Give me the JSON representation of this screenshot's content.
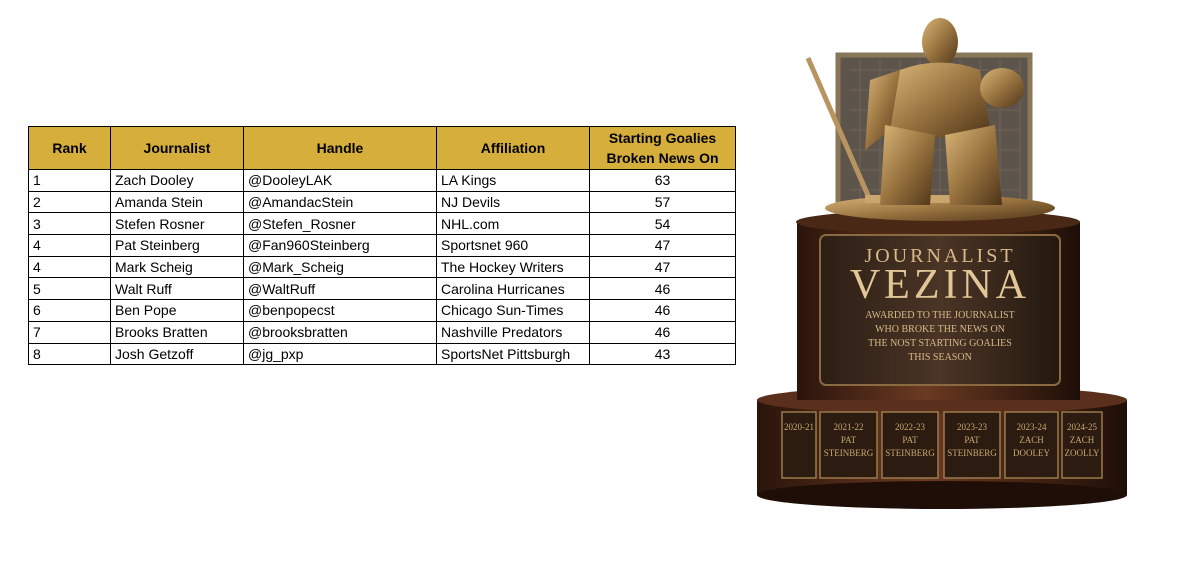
{
  "table": {
    "headers": [
      "Rank",
      "Journalist",
      "Handle",
      "Affiliation",
      "Starting Goalies Broken News On"
    ],
    "rows": [
      [
        1,
        "Zach Dooley",
        "@DooleyLAK",
        "LA Kings",
        63
      ],
      [
        2,
        "Amanda Stein",
        "@AmandacStein",
        "NJ Devils",
        57
      ],
      [
        3,
        "Stefen Rosner",
        "@Stefen_Rosner",
        "NHL.com",
        54
      ],
      [
        4,
        "Pat Steinberg",
        "@Fan960Steinberg",
        "Sportsnet 960",
        47
      ],
      [
        4,
        "Mark Scheig",
        "@Mark_Scheig",
        "The Hockey Writers",
        47
      ],
      [
        5,
        "Walt Ruff",
        "@WaltRuff",
        "Carolina Hurricanes",
        46
      ],
      [
        6,
        "Ben Pope",
        "@benpopecst",
        "Chicago Sun-Times",
        46
      ],
      [
        7,
        "Brooks Bratten",
        "@brooksbratten",
        "Nashville Predators",
        46
      ],
      [
        8,
        "Josh Getzoff",
        "@jg_pxp",
        "SportsNet Pittsburgh",
        43
      ]
    ]
  },
  "trophy": {
    "title": "JOURNALIST",
    "name": "VEZINA",
    "inscription": [
      "AWARDED TO THE JOURNALIST",
      "WHO BROKE THE NEWS ON",
      "THE NOST STARTING GOALIES",
      "THIS SEASON"
    ],
    "plaques": [
      [
        "2020-21"
      ],
      [
        "2021-22",
        "PAT",
        "STEINBERG"
      ],
      [
        "2022-23",
        "PAT",
        "STEINBERG"
      ],
      [
        "2023-23",
        "PAT",
        "STEINBERG"
      ],
      [
        "2023-24",
        "ZACH",
        "DOOLEY"
      ],
      [
        "2024-25",
        "ZACH",
        "ZOOLLY"
      ]
    ]
  }
}
